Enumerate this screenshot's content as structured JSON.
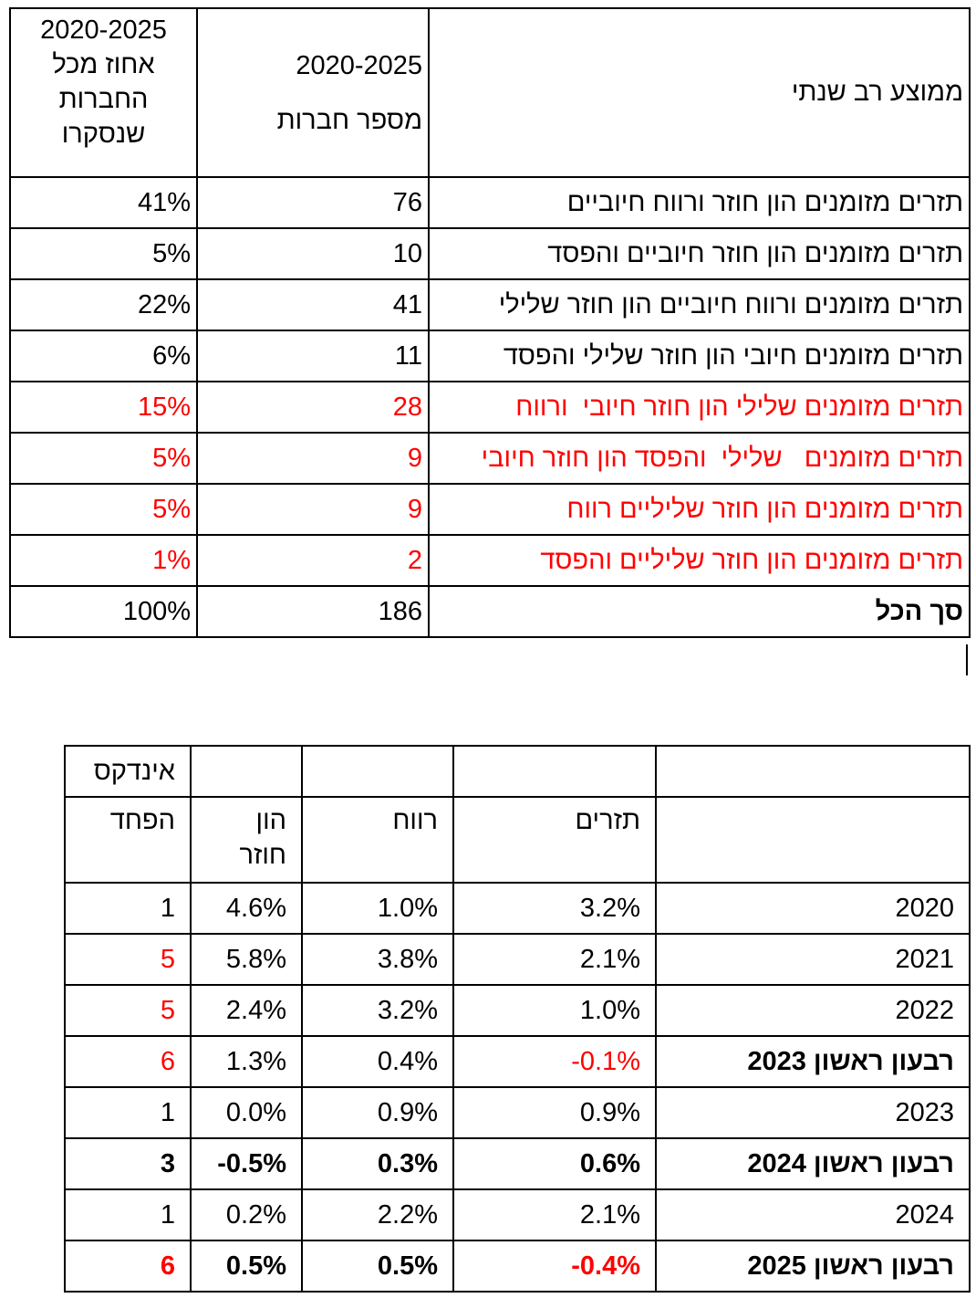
{
  "table1": {
    "header": {
      "pct_period": "2020-2025",
      "pct_line1": "אחוז מכל",
      "pct_line2": "החברות",
      "pct_line3": "שנסקרו",
      "count_period": "2020-2025",
      "count_label": "מספר חברות",
      "category_label": "ממוצע רב שנתי"
    },
    "rows": [
      {
        "label": "תזרים מזומנים הון חוזר ורווח חיוביים",
        "count": "76",
        "pct": "41%"
      },
      {
        "label": "תזרים מזומנים הון חוזר חיוביים והפסד",
        "count": "10",
        "pct": "5%"
      },
      {
        "label": "תזרים מזומנים ורווח חיוביים הון חוזר שלילי",
        "count": "41",
        "pct": "22%"
      },
      {
        "label": "תזרים מזומנים חיובי הון חוזר שלילי והפסד",
        "count": "11",
        "pct": "6%"
      },
      {
        "label": "תזרים מזומנים שלילי הון חוזר חיובי  ורווח",
        "count": "28",
        "pct": "15%"
      },
      {
        "label": "תזרים מזומנים   שלילי  והפסד הון חוזר חיובי",
        "count": "9",
        "pct": "5%"
      },
      {
        "label": "תזרים מזומנים הון חוזר שליליים רווח",
        "count": "9",
        "pct": "5%"
      },
      {
        "label": "תזרים מזומנים הון חוזר שליליים והפסד",
        "count": "2",
        "pct": "1%"
      }
    ],
    "total": {
      "label": "סך הכל",
      "count": "186",
      "pct": "100%"
    }
  },
  "table2": {
    "top_header": {
      "index_label": "אינדקס"
    },
    "header": {
      "fear": "הפחד",
      "wc_line1": "הון",
      "wc_line2": "חוזר",
      "profit": "רווח",
      "cashflow": "תזרים"
    },
    "rows": [
      {
        "period": "2020",
        "cashflow": "3.2%",
        "profit": "1.0%",
        "wc": "4.6%",
        "fear": "1"
      },
      {
        "period": "2021",
        "cashflow": "2.1%",
        "profit": "3.8%",
        "wc": "5.8%",
        "fear": "5"
      },
      {
        "period": "2022",
        "cashflow": "1.0%",
        "profit": "3.2%",
        "wc": "2.4%",
        "fear": "5"
      },
      {
        "period": "רבעון ראשון 2023",
        "cashflow": "-0.1%",
        "profit": "0.4%",
        "wc": "1.3%",
        "fear": "6"
      },
      {
        "period": "2023",
        "cashflow": "0.9%",
        "profit": "0.9%",
        "wc": "0.0%",
        "fear": "1"
      },
      {
        "period": "רבעון ראשון 2024",
        "cashflow": "0.6%",
        "profit": "0.3%",
        "wc": "-0.5%",
        "fear": "3"
      },
      {
        "period": "2024",
        "cashflow": "2.1%",
        "profit": "2.2%",
        "wc": "0.2%",
        "fear": "1"
      },
      {
        "period": "רבעון ראשון 2025",
        "cashflow": "-0.4%",
        "profit": "0.5%",
        "wc": "0.5%",
        "fear": "6"
      }
    ]
  },
  "colors": {
    "negative_highlight": "#ff0000",
    "text": "#000000"
  }
}
